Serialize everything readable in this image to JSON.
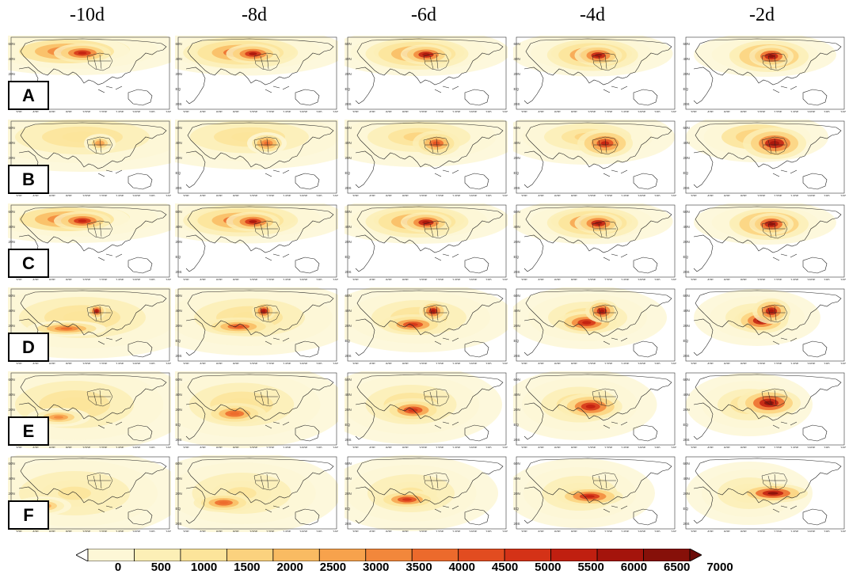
{
  "columns": [
    "-10d",
    "-8d",
    "-6d",
    "-4d",
    "-2d"
  ],
  "rows": [
    "A",
    "B",
    "C",
    "D",
    "E",
    "F"
  ],
  "lat_ticks": [
    "60N",
    "40N",
    "20N",
    "EQ",
    "20S"
  ],
  "lon_ticks": [
    "20E",
    "40E",
    "60E",
    "80E",
    "100E",
    "120E",
    "140E",
    "160E",
    "180",
    "160W"
  ],
  "colorbar": {
    "labels": [
      "0",
      "500",
      "1000",
      "1500",
      "2000",
      "2500",
      "3000",
      "3500",
      "4000",
      "4500",
      "5000",
      "5500",
      "6000",
      "6500",
      "7000"
    ],
    "colors": [
      "#ffffff",
      "#fdf7d6",
      "#fcefb6",
      "#fce49a",
      "#fbd27e",
      "#f9bb62",
      "#f7a24c",
      "#f2873b",
      "#ec6a2c",
      "#e24c20",
      "#d43217",
      "#c01f10",
      "#a4140c",
      "#861009",
      "#6b0c08"
    ]
  }
}
